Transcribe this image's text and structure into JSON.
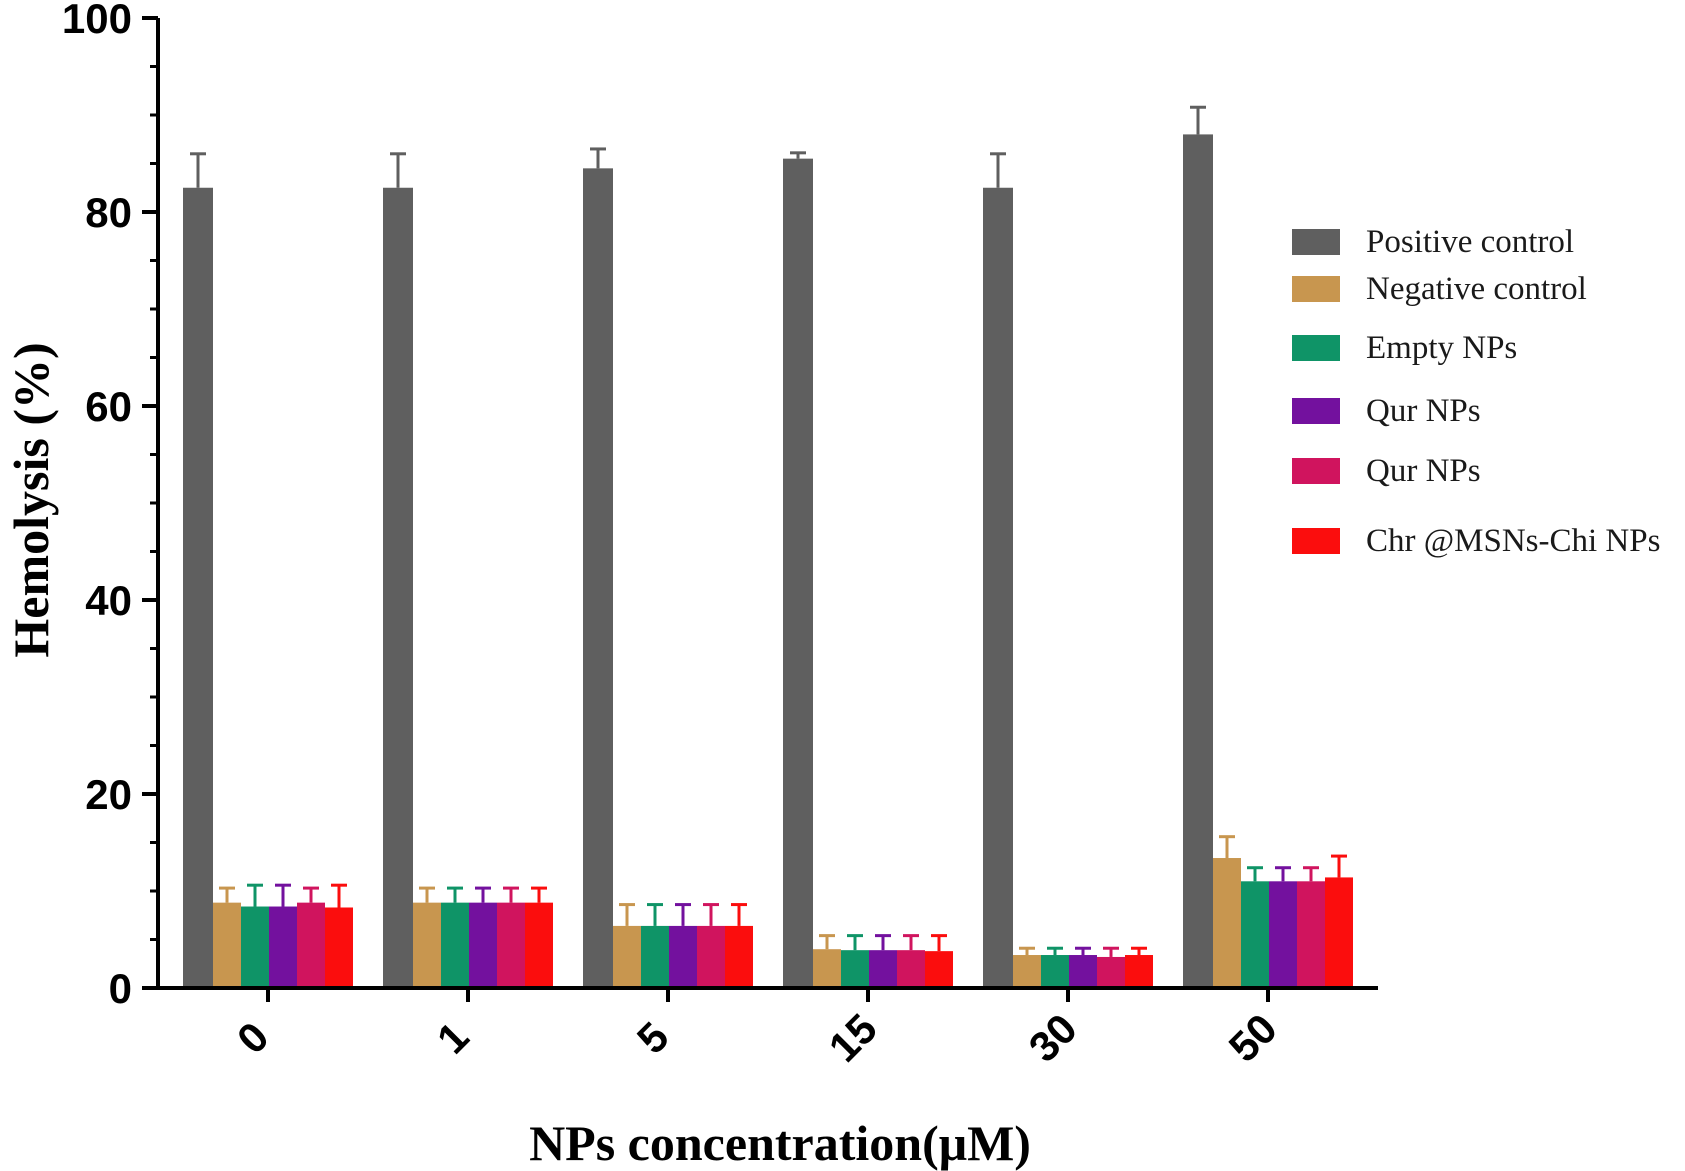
{
  "chart_data": {
    "type": "bar",
    "title": "",
    "xlabel": "NPs concentration(μM)",
    "ylabel": "Hemolysis (%)",
    "ylim": [
      0,
      100
    ],
    "yticks": [
      "0",
      "20",
      "40",
      "60",
      "80",
      "100"
    ],
    "categories": [
      "0",
      "1",
      "5",
      "15",
      "30",
      "50"
    ],
    "legend_position": "right",
    "series": [
      {
        "name": "Positive control",
        "color": "#5f5f5f",
        "values": [
          82.5,
          82.5,
          84.5,
          85.5,
          82.5,
          88.0
        ],
        "errors": [
          3.5,
          3.5,
          2.0,
          0.6,
          3.5,
          2.8
        ]
      },
      {
        "name": "Negative control",
        "color": "#c8964f",
        "values": [
          8.8,
          8.8,
          6.4,
          4.0,
          3.4,
          13.4
        ],
        "errors": [
          1.5,
          1.5,
          2.2,
          1.4,
          0.7,
          2.2
        ]
      },
      {
        "name": "Empty NPs",
        "color": "#0f9467",
        "values": [
          8.4,
          8.8,
          6.4,
          3.9,
          3.4,
          11.0
        ],
        "errors": [
          2.2,
          1.5,
          2.2,
          1.5,
          0.7,
          1.4
        ]
      },
      {
        "name": "Qur NPs",
        "color": "#73119e",
        "values": [
          8.4,
          8.8,
          6.4,
          3.9,
          3.4,
          11.0
        ],
        "errors": [
          2.2,
          1.5,
          2.2,
          1.5,
          0.7,
          1.4
        ]
      },
      {
        "name": "Qur NPs",
        "color": "#d0145e",
        "values": [
          8.8,
          8.8,
          6.4,
          3.9,
          3.2,
          11.0
        ],
        "errors": [
          1.5,
          1.5,
          2.2,
          1.5,
          0.9,
          1.4
        ]
      },
      {
        "name": "Chr @MSNs-Chi NPs",
        "color": "#fb0d0d",
        "values": [
          8.3,
          8.8,
          6.4,
          3.8,
          3.4,
          11.4
        ],
        "errors": [
          2.3,
          1.5,
          2.2,
          1.6,
          0.7,
          2.2
        ]
      }
    ]
  }
}
